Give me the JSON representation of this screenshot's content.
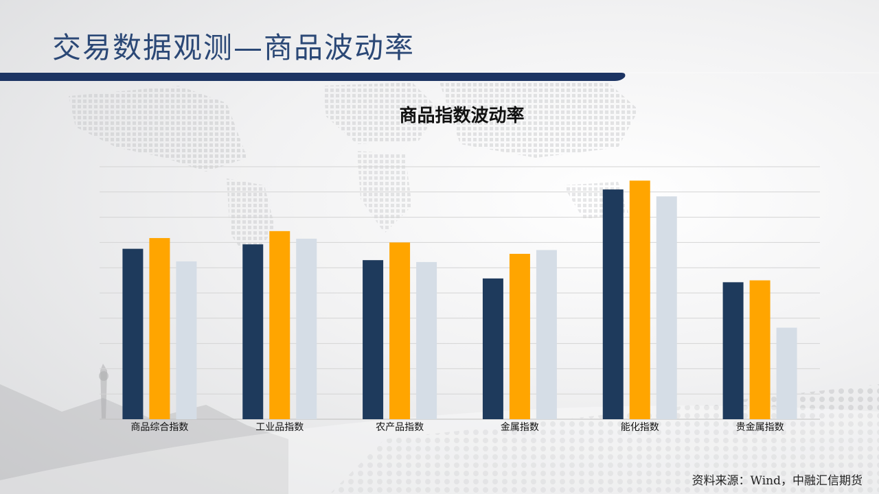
{
  "slide": {
    "title": "交易数据观测—商品波动率",
    "source": "资料来源：Wind，中融汇信期货"
  },
  "colors": {
    "title": "#2b4876",
    "bar_dark": "#1e3a5c",
    "bar_orange": "#ffa500",
    "bar_light": "#d5dde6",
    "header_bar": "#1c3463"
  },
  "chart_data": {
    "type": "bar",
    "title": "商品指数波动率",
    "categories": [
      "商品综合指数",
      "工业品指数",
      "农产品指数",
      "金属指数",
      "能化指数",
      "贵金属指数"
    ],
    "series": [
      {
        "values": [
          27.0,
          27.7,
          25.2,
          22.3,
          36.4,
          21.7
        ]
      },
      {
        "values": [
          28.7,
          29.8,
          28.0,
          26.2,
          37.8,
          22.0
        ]
      },
      {
        "values": [
          25.0,
          28.6,
          24.9,
          26.8,
          35.3,
          14.5
        ]
      }
    ],
    "ylim": [
      0,
      40
    ],
    "grid": true,
    "legend": false
  }
}
